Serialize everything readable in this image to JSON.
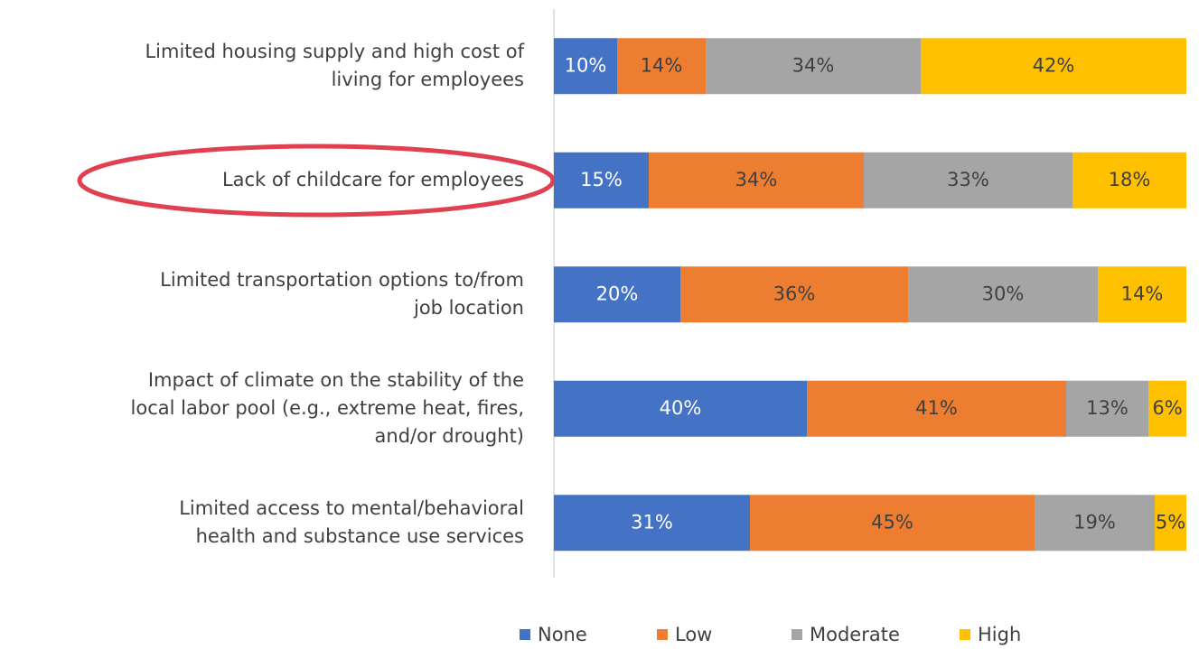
{
  "chart_data": {
    "type": "stacked_bar_horizontal",
    "categories": [
      [
        "Limited housing supply and high cost of",
        "living for employees"
      ],
      [
        "Lack of childcare for employees"
      ],
      [
        "Limited transportation options to/from",
        "job location"
      ],
      [
        "Impact of climate on the stability of the",
        "local labor pool (e.g., extreme heat, fires,",
        "and/or drought)"
      ],
      [
        "Limited access to mental/behavioral",
        "health and substance use services"
      ]
    ],
    "series": [
      {
        "name": "None",
        "color": "#4472c4",
        "values": [
          10,
          15,
          20,
          40,
          31
        ],
        "value_labels": [
          "10%",
          "15%",
          "20%",
          "40%",
          "31%"
        ]
      },
      {
        "name": "Low",
        "color": "#ed7d31",
        "values": [
          14,
          34,
          36,
          41,
          45
        ],
        "value_labels": [
          "14%",
          "34%",
          "36%",
          "41%",
          "45%"
        ]
      },
      {
        "name": "Moderate",
        "color": "#a5a5a5",
        "values": [
          34,
          33,
          30,
          13,
          19
        ],
        "value_labels": [
          "34%",
          "33%",
          "30%",
          "13%",
          "19%"
        ]
      },
      {
        "name": "High",
        "color": "#ffc000",
        "values": [
          42,
          18,
          14,
          6,
          5
        ],
        "value_labels": [
          "42%",
          "18%",
          "14%",
          "6%",
          "5%"
        ]
      }
    ],
    "legend": "bottom"
  }
}
